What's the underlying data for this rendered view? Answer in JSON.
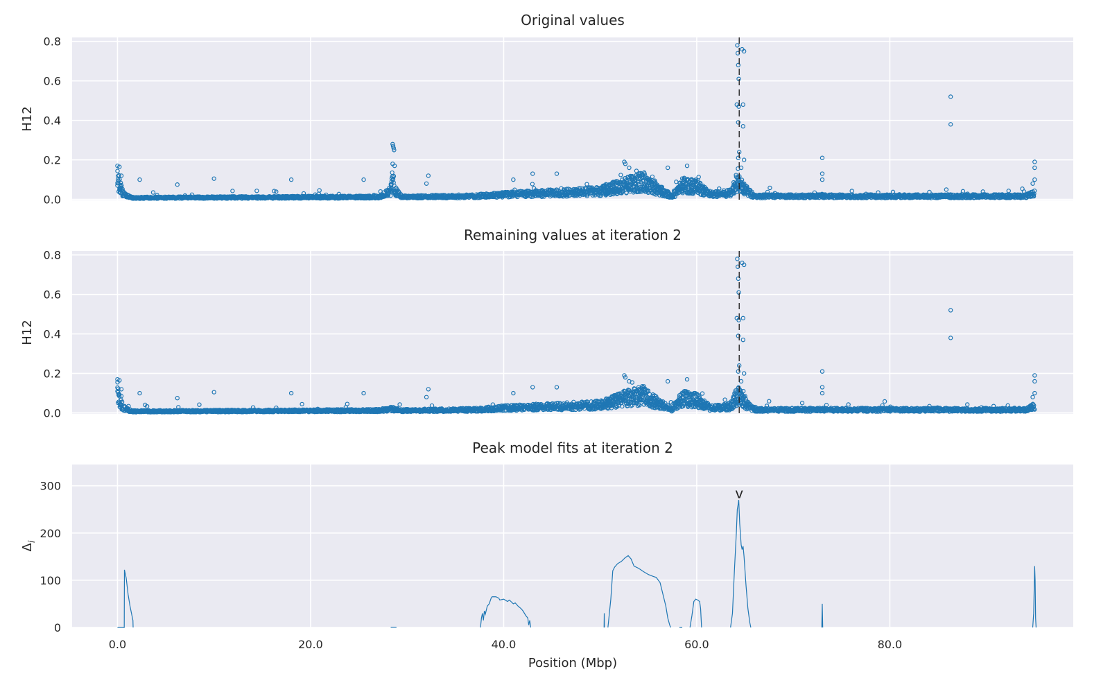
{
  "figure": {
    "accent_color": "#1f77b4",
    "background_color": "#eaeaf2",
    "marker_color": "#262626"
  },
  "chart_data": [
    {
      "type": "scatter",
      "title": "Original values",
      "xlabel": "",
      "ylabel": "H12",
      "xlim": [
        -4.7,
        99.0
      ],
      "ylim": [
        -0.005,
        0.82
      ],
      "xticks": [
        0,
        20,
        40,
        60,
        80
      ],
      "yticks": [
        0.0,
        0.2,
        0.4,
        0.6,
        0.8
      ],
      "ytick_labels": [
        "0.0",
        "0.2",
        "0.4",
        "0.6",
        "0.8"
      ],
      "grid": true,
      "marker": "open-circle",
      "vline_x": 64.4,
      "baseline_profile": [
        [
          0,
          0.12
        ],
        [
          0.6,
          0.03
        ],
        [
          1.5,
          0.01
        ],
        [
          27,
          0.015
        ],
        [
          28.3,
          0.05
        ],
        [
          28.5,
          0.12
        ],
        [
          28.8,
          0.05
        ],
        [
          29.5,
          0.015
        ],
        [
          37,
          0.02
        ],
        [
          40,
          0.03
        ],
        [
          45,
          0.04
        ],
        [
          50,
          0.05
        ],
        [
          52.5,
          0.09
        ],
        [
          54.5,
          0.11
        ],
        [
          56,
          0.06
        ],
        [
          57.5,
          0.02
        ],
        [
          58.5,
          0.09
        ],
        [
          60,
          0.08
        ],
        [
          61.5,
          0.03
        ],
        [
          63.5,
          0.04
        ],
        [
          64.3,
          0.12
        ],
        [
          65,
          0.06
        ],
        [
          66,
          0.02
        ],
        [
          94,
          0.02
        ],
        [
          95,
          0.04
        ]
      ],
      "highlight_points": [
        [
          0,
          0.17
        ],
        [
          0.2,
          0.165
        ],
        [
          0.4,
          0.12
        ],
        [
          2.3,
          0.1
        ],
        [
          6.2,
          0.075
        ],
        [
          10,
          0.105
        ],
        [
          18,
          0.1
        ],
        [
          25.5,
          0.1
        ],
        [
          28.5,
          0.28
        ],
        [
          28.55,
          0.27
        ],
        [
          28.6,
          0.26
        ],
        [
          28.65,
          0.25
        ],
        [
          28.5,
          0.18
        ],
        [
          28.7,
          0.17
        ],
        [
          32.2,
          0.12
        ],
        [
          32,
          0.08
        ],
        [
          41,
          0.1
        ],
        [
          43,
          0.13
        ],
        [
          45.5,
          0.13
        ],
        [
          52.5,
          0.19
        ],
        [
          52.6,
          0.18
        ],
        [
          53,
          0.16
        ],
        [
          57,
          0.16
        ],
        [
          59,
          0.17
        ],
        [
          64.2,
          0.78
        ],
        [
          64.25,
          0.74
        ],
        [
          64.3,
          0.68
        ],
        [
          64.35,
          0.61
        ],
        [
          64.15,
          0.48
        ],
        [
          64.35,
          0.47
        ],
        [
          64.3,
          0.39
        ],
        [
          64.4,
          0.24
        ],
        [
          64.3,
          0.21
        ],
        [
          64.7,
          0.76
        ],
        [
          64.9,
          0.75
        ],
        [
          64.8,
          0.48
        ],
        [
          64.8,
          0.37
        ],
        [
          64.9,
          0.2
        ],
        [
          64.6,
          0.16
        ],
        [
          73,
          0.21
        ],
        [
          73,
          0.13
        ],
        [
          73,
          0.1
        ],
        [
          86.3,
          0.52
        ],
        [
          86.3,
          0.38
        ],
        [
          95,
          0.19
        ],
        [
          95,
          0.16
        ],
        [
          95,
          0.1
        ],
        [
          94.8,
          0.08
        ]
      ]
    },
    {
      "type": "scatter",
      "title": "Remaining values at iteration 2",
      "xlabel": "",
      "ylabel": "H12",
      "xlim": [
        -4.7,
        99.0
      ],
      "ylim": [
        -0.005,
        0.82
      ],
      "xticks": [
        0,
        20,
        40,
        60,
        80
      ],
      "yticks": [
        0.0,
        0.2,
        0.4,
        0.6,
        0.8
      ],
      "ytick_labels": [
        "0.0",
        "0.2",
        "0.4",
        "0.6",
        "0.8"
      ],
      "grid": true,
      "marker": "open-circle",
      "vline_x": 64.4,
      "baseline_profile": [
        [
          0,
          0.12
        ],
        [
          0.6,
          0.03
        ],
        [
          1.5,
          0.01
        ],
        [
          27,
          0.015
        ],
        [
          28.3,
          0.025
        ],
        [
          29.5,
          0.015
        ],
        [
          37,
          0.02
        ],
        [
          40,
          0.03
        ],
        [
          45,
          0.04
        ],
        [
          50,
          0.05
        ],
        [
          52.5,
          0.09
        ],
        [
          54.5,
          0.11
        ],
        [
          56,
          0.06
        ],
        [
          57.5,
          0.02
        ],
        [
          58.5,
          0.09
        ],
        [
          60,
          0.08
        ],
        [
          61.5,
          0.03
        ],
        [
          63.5,
          0.04
        ],
        [
          64.3,
          0.12
        ],
        [
          65,
          0.06
        ],
        [
          66,
          0.02
        ],
        [
          94,
          0.02
        ],
        [
          95,
          0.04
        ]
      ],
      "highlight_points": [
        [
          0,
          0.17
        ],
        [
          0.2,
          0.165
        ],
        [
          0.4,
          0.12
        ],
        [
          2.3,
          0.1
        ],
        [
          6.2,
          0.075
        ],
        [
          10,
          0.105
        ],
        [
          18,
          0.1
        ],
        [
          25.5,
          0.1
        ],
        [
          32.2,
          0.12
        ],
        [
          32,
          0.08
        ],
        [
          41,
          0.1
        ],
        [
          43,
          0.13
        ],
        [
          45.5,
          0.13
        ],
        [
          52.5,
          0.19
        ],
        [
          52.6,
          0.18
        ],
        [
          53,
          0.16
        ],
        [
          57,
          0.16
        ],
        [
          59,
          0.17
        ],
        [
          64.2,
          0.78
        ],
        [
          64.25,
          0.74
        ],
        [
          64.3,
          0.68
        ],
        [
          64.35,
          0.61
        ],
        [
          64.15,
          0.48
        ],
        [
          64.35,
          0.47
        ],
        [
          64.3,
          0.39
        ],
        [
          64.4,
          0.24
        ],
        [
          64.3,
          0.21
        ],
        [
          64.7,
          0.76
        ],
        [
          64.9,
          0.75
        ],
        [
          64.8,
          0.48
        ],
        [
          64.8,
          0.37
        ],
        [
          64.9,
          0.2
        ],
        [
          64.6,
          0.16
        ],
        [
          73,
          0.21
        ],
        [
          73,
          0.13
        ],
        [
          73,
          0.1
        ],
        [
          86.3,
          0.52
        ],
        [
          86.3,
          0.38
        ],
        [
          95,
          0.19
        ],
        [
          95,
          0.16
        ],
        [
          95,
          0.1
        ],
        [
          94.8,
          0.08
        ]
      ]
    },
    {
      "type": "line",
      "title": "Peak model fits at iteration 2",
      "xlabel": "Position (Mbp)",
      "ylabel": "Δi",
      "ylabel_main": "Δ",
      "ylabel_sub": "i",
      "xlim": [
        -4.7,
        99.0
      ],
      "ylim": [
        0,
        345
      ],
      "xticks": [
        0,
        20,
        40,
        60,
        80
      ],
      "xtick_labels": [
        "0.0",
        "20.0",
        "40.0",
        "60.0",
        "80.0"
      ],
      "yticks": [
        0,
        100,
        200,
        300
      ],
      "ytick_labels": [
        "0",
        "100",
        "200",
        "300"
      ],
      "grid": true,
      "peak_marker_label": "v",
      "peak_marker_x": 64.4,
      "series": [
        {
          "values": [
            [
              0,
              0
            ],
            [
              0.7,
              0
            ],
            [
              0.72,
              122
            ],
            [
              0.9,
              105
            ],
            [
              1.1,
              70
            ],
            [
              1.3,
              45
            ],
            [
              1.5,
              25
            ],
            [
              1.6,
              15
            ],
            [
              1.62,
              0
            ]
          ]
        },
        {
          "values": [
            [
              28.3,
              0.5
            ],
            [
              28.9,
              0.5
            ]
          ]
        },
        {
          "values": [
            [
              37.6,
              0
            ],
            [
              37.7,
              20
            ],
            [
              37.8,
              30
            ],
            [
              37.9,
              15
            ],
            [
              38.0,
              35
            ],
            [
              38.1,
              28
            ],
            [
              38.3,
              45
            ],
            [
              38.5,
              50
            ],
            [
              38.7,
              62
            ],
            [
              38.8,
              65
            ],
            [
              39.2,
              65
            ],
            [
              39.5,
              62
            ],
            [
              39.6,
              58
            ],
            [
              40.0,
              60
            ],
            [
              40.4,
              55
            ],
            [
              40.6,
              58
            ],
            [
              41.0,
              50
            ],
            [
              41.2,
              52
            ],
            [
              41.5,
              45
            ],
            [
              41.8,
              40
            ],
            [
              42.0,
              35
            ],
            [
              42.3,
              25
            ],
            [
              42.5,
              20
            ],
            [
              42.6,
              5
            ],
            [
              42.7,
              15
            ],
            [
              42.8,
              0
            ]
          ]
        },
        {
          "values": [
            [
              50.4,
              0
            ],
            [
              50.42,
              30
            ],
            [
              50.44,
              0
            ]
          ]
        },
        {
          "values": [
            [
              50.8,
              0
            ],
            [
              50.9,
              20
            ],
            [
              51.1,
              60
            ],
            [
              51.3,
              120
            ],
            [
              51.5,
              128
            ],
            [
              51.8,
              135
            ],
            [
              52.2,
              140
            ],
            [
              52.6,
              148
            ],
            [
              52.9,
              152
            ],
            [
              53.2,
              145
            ],
            [
              53.5,
              130
            ],
            [
              54.0,
              125
            ],
            [
              54.5,
              118
            ],
            [
              55.0,
              112
            ],
            [
              55.5,
              108
            ],
            [
              55.8,
              106
            ],
            [
              56.2,
              95
            ],
            [
              56.5,
              70
            ],
            [
              56.8,
              45
            ],
            [
              57.0,
              20
            ],
            [
              57.2,
              5
            ],
            [
              57.3,
              0
            ]
          ]
        },
        {
          "values": [
            [
              58.2,
              0
            ],
            [
              58.5,
              0
            ]
          ]
        },
        {
          "values": [
            [
              59.3,
              0
            ],
            [
              59.5,
              25
            ],
            [
              59.7,
              55
            ],
            [
              59.9,
              60
            ],
            [
              60.1,
              58
            ],
            [
              60.3,
              55
            ],
            [
              60.4,
              40
            ],
            [
              60.5,
              0
            ]
          ]
        },
        {
          "values": [
            [
              63.5,
              0
            ],
            [
              63.7,
              30
            ],
            [
              63.9,
              120
            ],
            [
              64.1,
              200
            ],
            [
              64.2,
              250
            ],
            [
              64.3,
              262
            ],
            [
              64.35,
              270
            ],
            [
              64.45,
              220
            ],
            [
              64.6,
              175
            ],
            [
              64.7,
              165
            ],
            [
              64.8,
              172
            ],
            [
              64.9,
              150
            ],
            [
              65.1,
              90
            ],
            [
              65.3,
              40
            ],
            [
              65.5,
              10
            ],
            [
              65.6,
              0
            ]
          ]
        },
        {
          "values": [
            [
              72.95,
              0
            ],
            [
              73.0,
              50
            ],
            [
              73.05,
              0
            ]
          ]
        },
        {
          "values": [
            [
              94.8,
              0
            ],
            [
              94.9,
              30
            ],
            [
              95.0,
              130
            ],
            [
              95.05,
              100
            ],
            [
              95.1,
              20
            ],
            [
              95.15,
              0
            ]
          ]
        }
      ]
    }
  ]
}
